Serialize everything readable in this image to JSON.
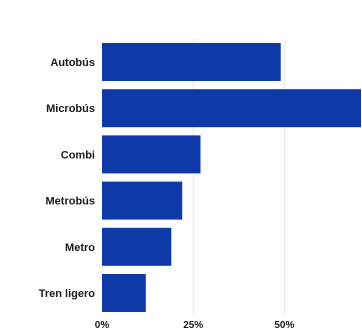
{
  "chart_data": {
    "type": "bar",
    "orientation": "horizontal",
    "categories": [
      "Autobús",
      "Microbús",
      "Combi",
      "Metrobús",
      "Metro",
      "Tren ligero"
    ],
    "values": [
      49,
      71,
      27,
      22,
      19,
      12
    ],
    "unit": "%",
    "xlim": [
      0,
      71
    ],
    "xticks": [
      0,
      25,
      50
    ],
    "xtick_labels": [
      "0%",
      "25%",
      "50%"
    ],
    "grid": true,
    "legend": "none",
    "bar_color": "#0d3aa8"
  }
}
